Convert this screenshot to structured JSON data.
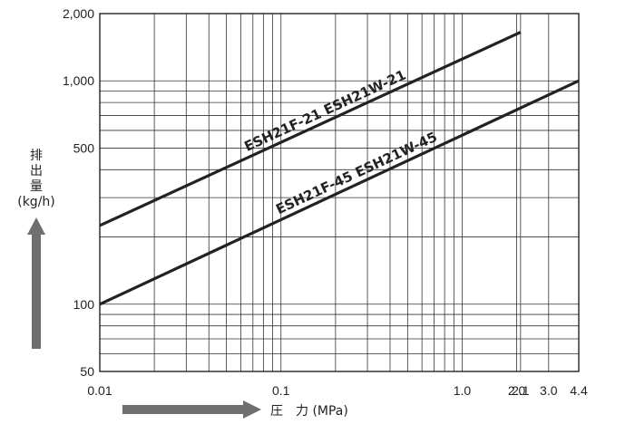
{
  "chart_data": {
    "type": "line",
    "title": "",
    "xlabel": "圧　力 (MPa)",
    "ylabel_chars": [
      "排",
      "出",
      "量"
    ],
    "ylabel_unit": "(kg/h)",
    "x_scale": "log",
    "y_scale": "log",
    "xlim": [
      0.01,
      4.4
    ],
    "ylim": [
      50,
      2000
    ],
    "grid": true,
    "x_grid": [
      0.02,
      0.03,
      0.04,
      0.05,
      0.06,
      0.07,
      0.08,
      0.09,
      0.1,
      0.2,
      0.3,
      0.4,
      0.5,
      0.6,
      0.7,
      0.8,
      0.9,
      1.0,
      2.0,
      2.1,
      3.0
    ],
    "y_grid": [
      60,
      70,
      80,
      90,
      100,
      200,
      300,
      400,
      500,
      600,
      700,
      800,
      900,
      1000
    ],
    "x_ticks": [
      {
        "value": 0.01,
        "label": "0.01"
      },
      {
        "value": 0.1,
        "label": "0.1"
      },
      {
        "value": 1.0,
        "label": "1.0"
      },
      {
        "value": 2.0,
        "label": "2.0"
      },
      {
        "value": 2.1,
        "label": "2.1"
      },
      {
        "value": 3.0,
        "label": "3.0"
      },
      {
        "value": 4.4,
        "label": "4.4"
      }
    ],
    "y_ticks": [
      {
        "value": 50,
        "label": "50"
      },
      {
        "value": 100,
        "label": "100"
      },
      {
        "value": 500,
        "label": "500"
      },
      {
        "value": 1000,
        "label": "1,000"
      },
      {
        "value": 2000,
        "label": "2,000"
      }
    ],
    "series": [
      {
        "name": "ESH21F-21  ESH21W-21",
        "x": [
          0.01,
          2.1
        ],
        "y": [
          225,
          1650
        ]
      },
      {
        "name": "ESH21F-45  ESH21W-45",
        "x": [
          0.01,
          4.4
        ],
        "y": [
          100,
          1000
        ]
      }
    ]
  }
}
